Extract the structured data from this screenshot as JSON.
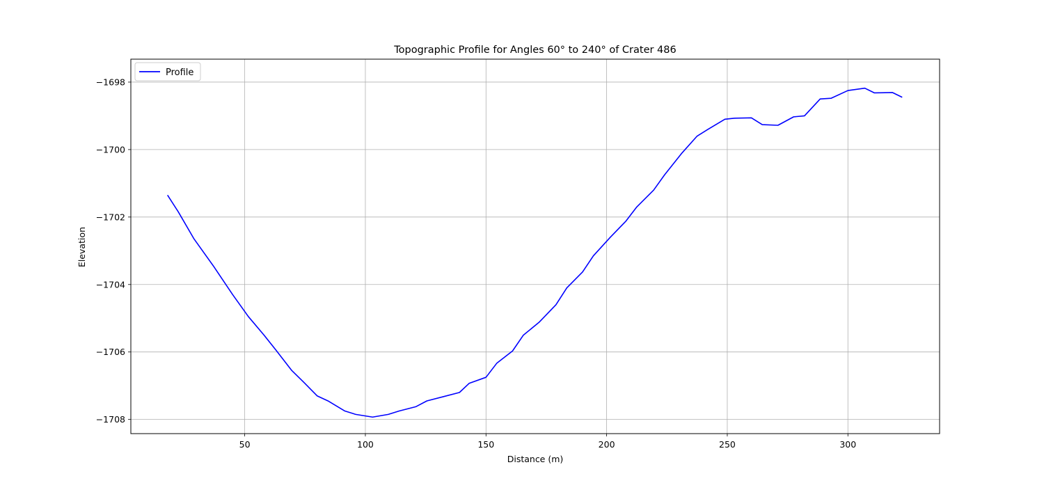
{
  "chart_data": {
    "type": "line",
    "title": "Topographic Profile for Angles 60° to 240° of Crater 486",
    "xlabel": "Distance (m)",
    "ylabel": "Elevation",
    "xlim": [
      2.8,
      338
    ],
    "ylim": [
      -1708.42,
      -1697.32
    ],
    "x_ticks": [
      50,
      100,
      150,
      200,
      250,
      300
    ],
    "x_tick_labels": [
      "50",
      "100",
      "150",
      "200",
      "250",
      "300"
    ],
    "y_ticks": [
      -1698,
      -1700,
      -1702,
      -1704,
      -1706,
      -1708
    ],
    "y_tick_labels": [
      "−1698",
      "−1700",
      "−1702",
      "−1704",
      "−1706",
      "−1708"
    ],
    "grid": true,
    "legend_location": "upper left",
    "series": [
      {
        "name": "Profile",
        "color": "#0000ff",
        "x": [
          18,
          22.5,
          29,
          37,
          45,
          51.5,
          58,
          63,
          69.5,
          74.5,
          80,
          84.5,
          91.5,
          96,
          103,
          109.5,
          114,
          121,
          125.5,
          132,
          139,
          143,
          150,
          154.5,
          161,
          165.5,
          172,
          179,
          183.5,
          190,
          194.5,
          201.5,
          208,
          212.5,
          219.5,
          224,
          231,
          237.5,
          242,
          249,
          253,
          260,
          264.5,
          271,
          277.5,
          282,
          288.5,
          293,
          300,
          307,
          311,
          318.5,
          322.5
        ],
        "y": [
          -1701.35,
          -1701.85,
          -1702.65,
          -1703.45,
          -1704.3,
          -1704.95,
          -1705.5,
          -1705.95,
          -1706.55,
          -1706.9,
          -1707.3,
          -1707.45,
          -1707.75,
          -1707.85,
          -1707.93,
          -1707.85,
          -1707.75,
          -1707.62,
          -1707.45,
          -1707.33,
          -1707.2,
          -1706.93,
          -1706.75,
          -1706.33,
          -1705.97,
          -1705.5,
          -1705.12,
          -1704.6,
          -1704.1,
          -1703.63,
          -1703.15,
          -1702.6,
          -1702.12,
          -1701.7,
          -1701.2,
          -1700.75,
          -1700.12,
          -1699.6,
          -1699.4,
          -1699.1,
          -1699.07,
          -1699.06,
          -1699.26,
          -1699.28,
          -1699.03,
          -1699.0,
          -1698.5,
          -1698.48,
          -1698.25,
          -1698.18,
          -1698.32,
          -1698.31,
          -1698.45
        ]
      }
    ]
  }
}
